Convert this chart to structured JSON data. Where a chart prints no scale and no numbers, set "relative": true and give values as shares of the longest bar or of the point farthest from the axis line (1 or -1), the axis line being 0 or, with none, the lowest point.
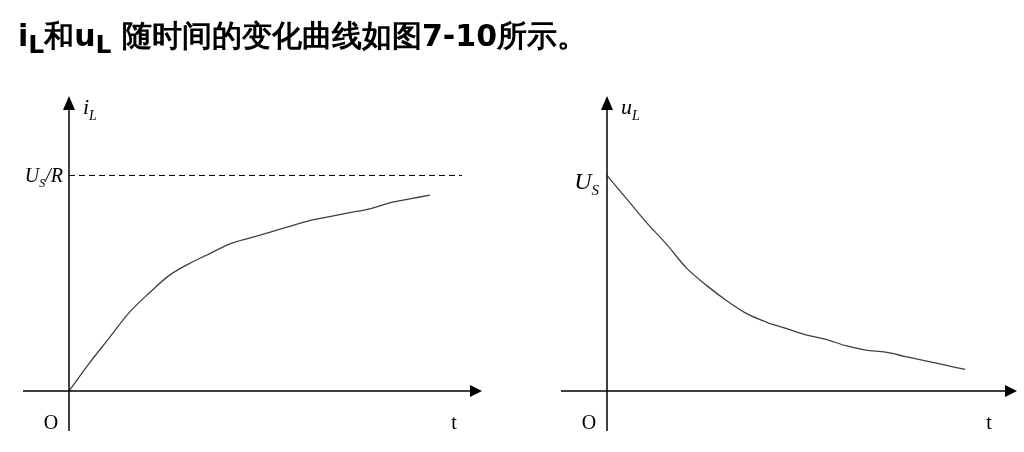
{
  "chart_data": [
    {
      "type": "line",
      "title": "i$_{L}$和u$_{L}$ 随时间的变化曲线如图7-10所示。",
      "xlabel": "t",
      "ylabel": "i$_{L}$",
      "relative": true,
      "categories": [
        null,
        null,
        null,
        null,
        null,
        null,
        null,
        null,
        null,
        null,
        null,
        null,
        null,
        null,
        null,
        null,
        null,
        null,
        null,
        null,
        null
      ],
      "series": [
        {
          "color": "#404040",
          "values": [
            0,
            0.14,
            0.27,
            0.4,
            0.5,
            0.59,
            0.65,
            0.7,
            0.75,
            0.78,
            0.81,
            0.84,
            0.87,
            0.89,
            0.91,
            0.93,
            0.96,
            0.98,
            1,
            null,
            null
          ]
        }
      ],
      "ref_lines": [
        {
          "axis": "y",
          "value": 1.1,
          "label": "U$_{S}$/R",
          "color": "#000000",
          "line_style": "dashed"
        }
      ],
      "annotations": [
        "O"
      ]
    },
    {
      "type": "line",
      "xlabel": "t",
      "ylabel": "u$_{L}$",
      "relative": true,
      "categories": [
        null,
        null,
        null,
        null,
        null,
        null,
        null,
        null,
        null,
        null,
        null,
        null,
        null,
        null,
        null,
        null,
        null,
        null,
        null,
        null,
        null
      ],
      "series": [
        {
          "color": "#404040",
          "values": [
            1,
            0.89,
            0.78,
            0.68,
            0.57,
            0.49,
            0.42,
            0.36,
            0.32,
            0.29,
            0.26,
            0.24,
            0.21,
            0.19,
            0.18,
            0.16,
            0.14,
            0.12,
            0.1,
            null,
            null
          ]
        }
      ],
      "annotations": [
        "O",
        "U$_{S}$"
      ]
    }
  ]
}
